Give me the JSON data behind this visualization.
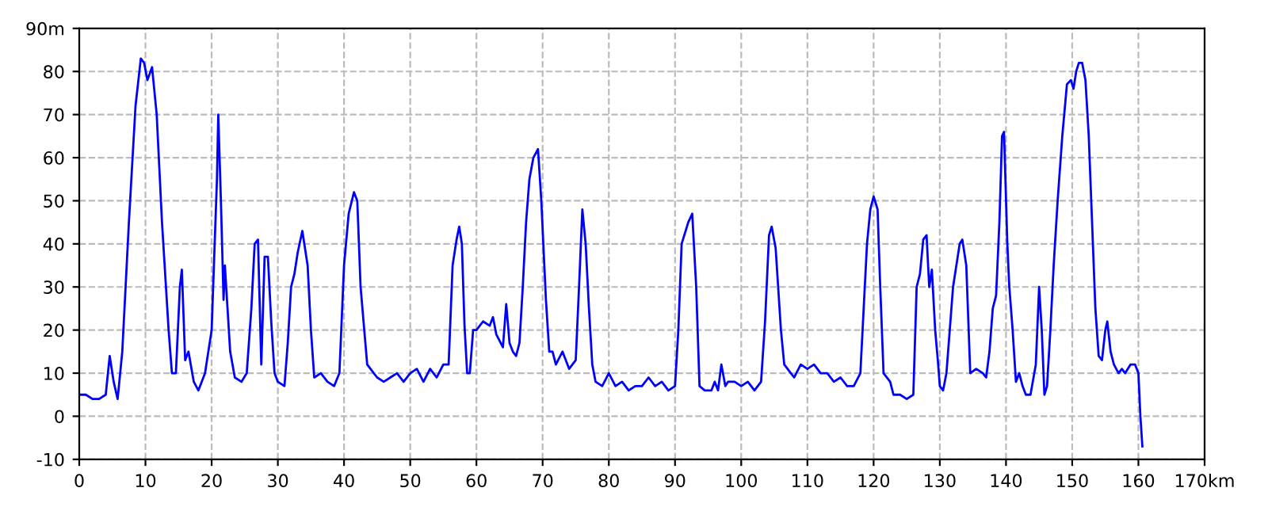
{
  "chart_data": {
    "type": "line",
    "xlim": [
      0,
      170
    ],
    "ylim": [
      -10,
      90
    ],
    "xticks": [
      0,
      10,
      20,
      30,
      40,
      50,
      60,
      70,
      80,
      90,
      100,
      110,
      120,
      130,
      140,
      150,
      160,
      {
        "value": 170,
        "label": "170km"
      }
    ],
    "yticks": [
      -10,
      0,
      10,
      20,
      30,
      40,
      50,
      60,
      70,
      80,
      {
        "value": 90,
        "label": "90m"
      }
    ],
    "grid": true,
    "marker": "none",
    "line_style": "solid",
    "series": [
      {
        "color": "#0000ff",
        "x": [
          0,
          1,
          2,
          3,
          4,
          4.6,
          5.2,
          5.8,
          6.5,
          7.5,
          8.5,
          9.3,
          9.8,
          10.3,
          11,
          11.7,
          12.5,
          13.5,
          14,
          14.6,
          15.2,
          15.5,
          16,
          16.5,
          17.3,
          18,
          19,
          20,
          20.8,
          21,
          21.4,
          21.8,
          22,
          22.8,
          23.5,
          24.5,
          25.3,
          26,
          26.5,
          27,
          27.5,
          28,
          28.5,
          29,
          29.5,
          30,
          31,
          31.5,
          32,
          32.5,
          33,
          33.7,
          34.5,
          35,
          35.5,
          36.5,
          37.5,
          38.5,
          39.3,
          40,
          40.7,
          41.5,
          42,
          42.5,
          43.5,
          44.5,
          45,
          46,
          47,
          48,
          49,
          50,
          51,
          52,
          53,
          54,
          55,
          55.8,
          56.4,
          57,
          57.4,
          57.8,
          58.2,
          58.6,
          59,
          59.5,
          60,
          61,
          62,
          62.5,
          63,
          64,
          64.5,
          65,
          65.5,
          66,
          66.5,
          67,
          67.5,
          68,
          68.6,
          69.3,
          69.8,
          70.5,
          71,
          71.5,
          72,
          73,
          74,
          75,
          75.5,
          76,
          76.5,
          77,
          77.5,
          78,
          79,
          80,
          81,
          82,
          83,
          84,
          85,
          86,
          87,
          88,
          89,
          90,
          90.5,
          91,
          92,
          92.6,
          93.2,
          93.7,
          94.5,
          95.5,
          96,
          96.5,
          97,
          97.6,
          98,
          99,
          100,
          101,
          102,
          103,
          103.6,
          104.2,
          104.6,
          105.2,
          106,
          106.5,
          107.5,
          108,
          109,
          110,
          111,
          112,
          113,
          114,
          115,
          116,
          117,
          118,
          118.5,
          119,
          119.5,
          120,
          120.6,
          121,
          121.5,
          122.5,
          123,
          124,
          125,
          126,
          126.5,
          127,
          127.5,
          128,
          128.4,
          128.8,
          129.3,
          129.7,
          130,
          130.5,
          131,
          132,
          133,
          133.4,
          134,
          134.6,
          135.5,
          136.5,
          137,
          137.5,
          138,
          138.5,
          139,
          139.4,
          139.7,
          140.2,
          140.5,
          141,
          141.5,
          142,
          142.5,
          143,
          143.7,
          144.5,
          145,
          145.4,
          145.8,
          146.2,
          146.7,
          147.2,
          147.8,
          148.5,
          149.2,
          149.8,
          150.2,
          150.6,
          151,
          151.5,
          152,
          152.5,
          153,
          153.5,
          154,
          154.5,
          155,
          155.3,
          155.8,
          156.3,
          157,
          157.5,
          158,
          158.8,
          159.5,
          160,
          160.3,
          160.6
        ],
        "values": [
          5,
          5,
          4,
          4,
          5,
          14,
          8,
          4,
          15,
          45,
          72,
          83,
          82,
          78,
          81,
          70,
          45,
          20,
          10,
          10,
          30,
          34,
          13,
          15,
          8,
          6,
          10,
          20,
          55,
          70,
          50,
          27,
          35,
          15,
          9,
          8,
          10,
          25,
          40,
          41,
          12,
          37,
          37,
          22,
          10,
          8,
          7,
          17,
          30,
          33,
          38,
          43,
          35,
          20,
          9,
          10,
          8,
          7,
          10,
          35,
          47,
          52,
          50,
          30,
          12,
          10,
          9,
          8,
          9,
          10,
          8,
          10,
          11,
          8,
          11,
          9,
          12,
          12,
          35,
          41,
          44,
          40,
          21,
          10,
          10,
          20,
          20,
          22,
          21,
          23,
          19,
          16,
          26,
          17,
          15,
          14,
          17,
          30,
          45,
          55,
          60,
          62,
          50,
          27,
          15,
          15,
          12,
          15,
          11,
          13,
          30,
          48,
          40,
          25,
          12,
          8,
          7,
          10,
          7,
          8,
          6,
          7,
          7,
          9,
          7,
          8,
          6,
          7,
          20,
          40,
          45,
          47,
          30,
          7,
          6,
          6,
          8,
          6,
          12,
          7,
          8,
          8,
          7,
          8,
          6,
          8,
          22,
          42,
          44,
          39,
          20,
          12,
          10,
          9,
          12,
          11,
          12,
          10,
          10,
          8,
          9,
          7,
          7,
          10,
          25,
          40,
          48,
          51,
          48,
          30,
          10,
          8,
          5,
          5,
          4,
          5,
          30,
          33,
          41,
          42,
          30,
          34,
          20,
          13,
          7,
          6,
          10,
          30,
          40,
          41,
          35,
          10,
          11,
          10,
          9,
          15,
          25,
          28,
          45,
          65,
          66,
          40,
          30,
          20,
          8,
          10,
          7,
          5,
          5,
          12,
          30,
          20,
          5,
          7,
          20,
          35,
          50,
          65,
          77,
          78,
          76,
          80,
          82,
          82,
          78,
          65,
          45,
          25,
          14,
          13,
          20,
          22,
          15,
          12,
          10,
          11,
          10,
          12,
          12,
          10,
          0,
          -7
        ]
      }
    ]
  }
}
